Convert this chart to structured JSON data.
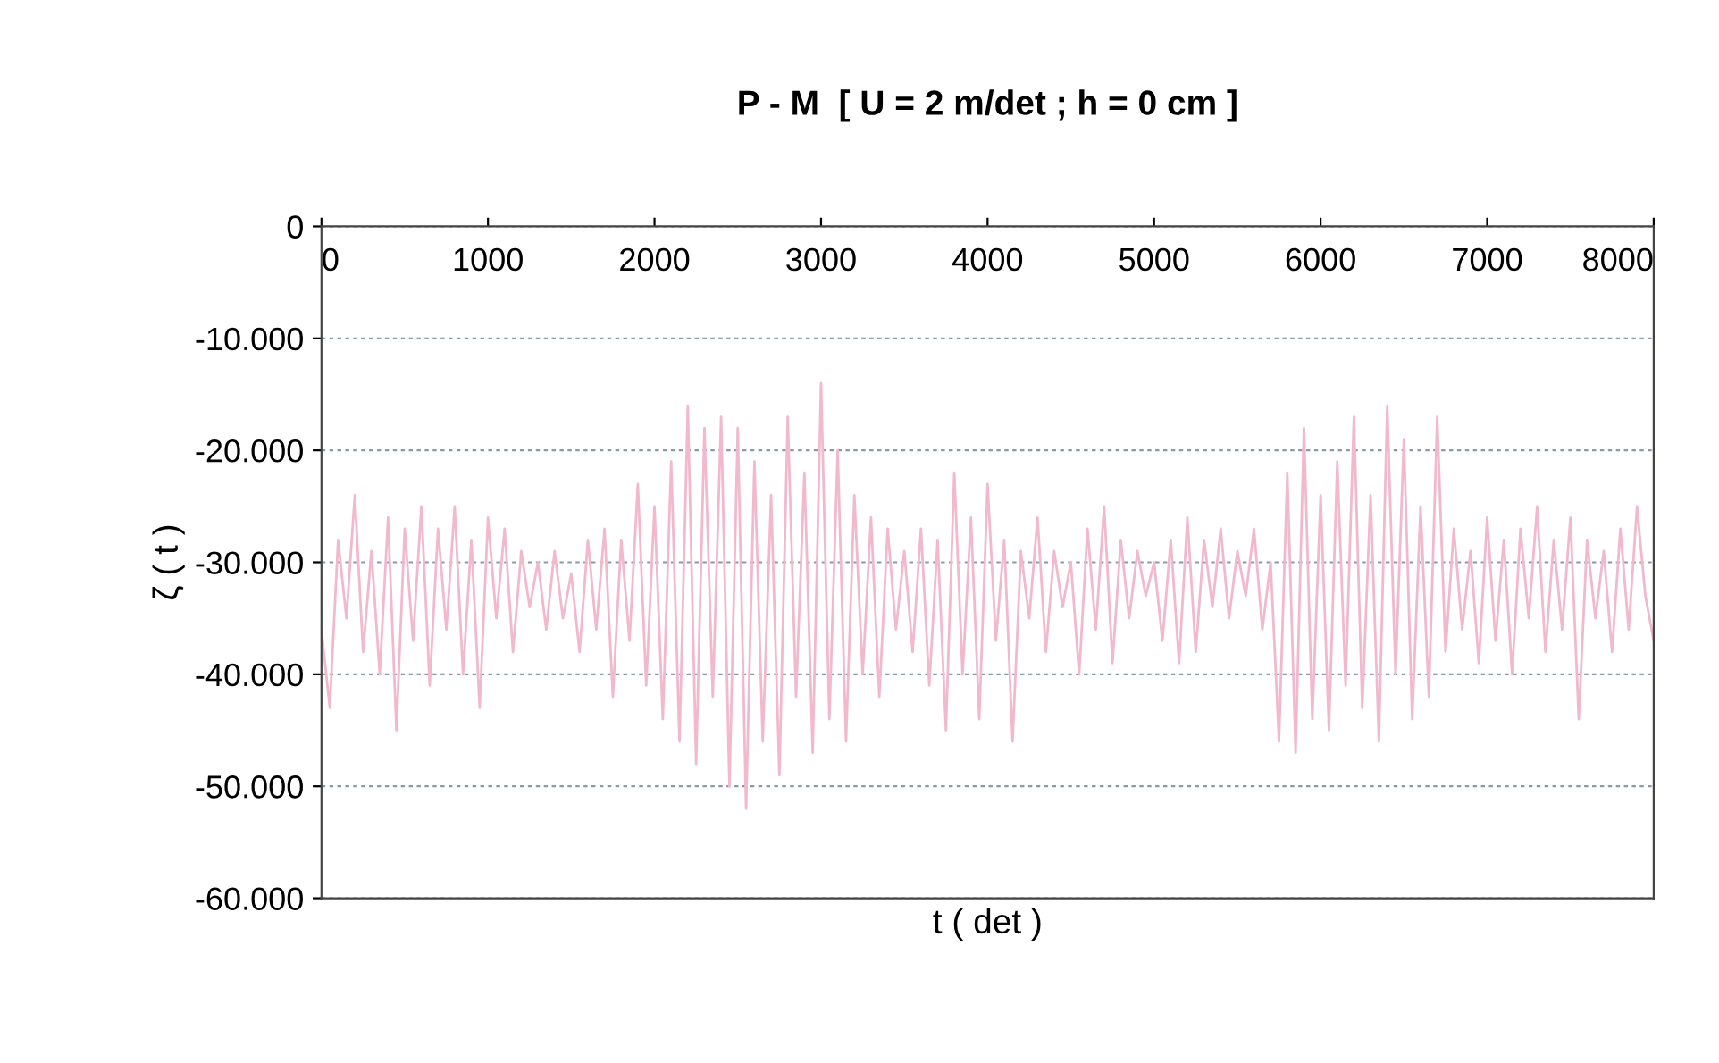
{
  "chart_data": {
    "type": "line",
    "title": "P - M  [ U = 2 m/det ; h = 0 cm ]",
    "xlabel": "t ( det )",
    "ylabel": "ζ ( t )",
    "x": [
      0,
      50,
      100,
      150,
      200,
      250,
      300,
      350,
      400,
      450,
      500,
      550,
      600,
      650,
      700,
      750,
      800,
      850,
      900,
      950,
      1000,
      1050,
      1100,
      1150,
      1200,
      1250,
      1300,
      1350,
      1400,
      1450,
      1500,
      1550,
      1600,
      1650,
      1700,
      1750,
      1800,
      1850,
      1900,
      1950,
      2000,
      2050,
      2100,
      2150,
      2200,
      2250,
      2300,
      2350,
      2400,
      2450,
      2500,
      2550,
      2600,
      2650,
      2700,
      2750,
      2800,
      2850,
      2900,
      2950,
      3000,
      3050,
      3100,
      3150,
      3200,
      3250,
      3300,
      3350,
      3400,
      3450,
      3500,
      3550,
      3600,
      3650,
      3700,
      3750,
      3800,
      3850,
      3900,
      3950,
      4000,
      4050,
      4100,
      4150,
      4200,
      4250,
      4300,
      4350,
      4400,
      4450,
      4500,
      4550,
      4600,
      4650,
      4700,
      4750,
      4800,
      4850,
      4900,
      4950,
      5000,
      5050,
      5100,
      5150,
      5200,
      5250,
      5300,
      5350,
      5400,
      5450,
      5500,
      5550,
      5600,
      5650,
      5700,
      5750,
      5800,
      5850,
      5900,
      5950,
      6000,
      6050,
      6100,
      6150,
      6200,
      6250,
      6300,
      6350,
      6400,
      6450,
      6500,
      6550,
      6600,
      6650,
      6700,
      6750,
      6800,
      6850,
      6900,
      6950,
      7000,
      7050,
      7100,
      7150,
      7200,
      7250,
      7300,
      7350,
      7400,
      7450,
      7500,
      7550,
      7600,
      7650,
      7700,
      7750,
      7800,
      7850,
      7900,
      7950,
      8000
    ],
    "series": [
      {
        "color": "#f2b8cc",
        "values": [
          -36000,
          -43000,
          -28000,
          -35000,
          -24000,
          -38000,
          -29000,
          -40000,
          -26000,
          -45000,
          -27000,
          -37000,
          -25000,
          -41000,
          -27000,
          -36000,
          -25000,
          -40000,
          -28000,
          -43000,
          -26000,
          -35000,
          -27000,
          -38000,
          -29000,
          -34000,
          -30000,
          -36000,
          -29000,
          -35000,
          -31000,
          -38000,
          -28000,
          -36000,
          -27000,
          -42000,
          -28000,
          -37000,
          -23000,
          -41000,
          -25000,
          -44000,
          -21000,
          -46000,
          -16000,
          -48000,
          -18000,
          -42000,
          -17000,
          -50000,
          -18000,
          -52000,
          -21000,
          -46000,
          -24000,
          -49000,
          -17000,
          -42000,
          -22000,
          -47000,
          -14000,
          -44000,
          -20000,
          -46000,
          -24000,
          -40000,
          -26000,
          -42000,
          -27000,
          -36000,
          -29000,
          -38000,
          -27000,
          -41000,
          -28000,
          -45000,
          -22000,
          -40000,
          -26000,
          -44000,
          -23000,
          -37000,
          -28000,
          -46000,
          -29000,
          -35000,
          -26000,
          -38000,
          -29000,
          -34000,
          -30000,
          -40000,
          -27000,
          -36000,
          -25000,
          -39000,
          -28000,
          -35000,
          -29000,
          -33000,
          -30000,
          -37000,
          -28000,
          -39000,
          -26000,
          -38000,
          -28000,
          -34000,
          -27000,
          -35000,
          -29000,
          -33000,
          -27000,
          -36000,
          -30000,
          -46000,
          -22000,
          -47000,
          -18000,
          -44000,
          -24000,
          -45000,
          -21000,
          -41000,
          -17000,
          -43000,
          -24000,
          -46000,
          -16000,
          -40000,
          -19000,
          -44000,
          -25000,
          -42000,
          -17000,
          -38000,
          -27000,
          -36000,
          -29000,
          -39000,
          -26000,
          -37000,
          -28000,
          -40000,
          -27000,
          -35000,
          -25000,
          -38000,
          -28000,
          -36000,
          -26000,
          -44000,
          -28000,
          -35000,
          -29000,
          -38000,
          -27000,
          -36000,
          -25000,
          -33000,
          -37000
        ]
      }
    ],
    "xlim": [
      0,
      8000
    ],
    "xticks": [
      0,
      1000,
      2000,
      3000,
      4000,
      5000,
      6000,
      7000,
      8000
    ],
    "ylim": [
      -60000,
      0
    ],
    "yticks": [
      0,
      {
        "value": -10000,
        "label": "-10.000"
      },
      {
        "value": -20000,
        "label": "-20.000"
      },
      {
        "value": -30000,
        "label": "-30.000"
      },
      {
        "value": -40000,
        "label": "-40.000"
      },
      {
        "value": -50000,
        "label": "-50.000"
      },
      {
        "value": -60000,
        "label": "-60.000"
      }
    ],
    "grid": "y",
    "legend": false,
    "marker": "none",
    "line_style": "solid"
  }
}
